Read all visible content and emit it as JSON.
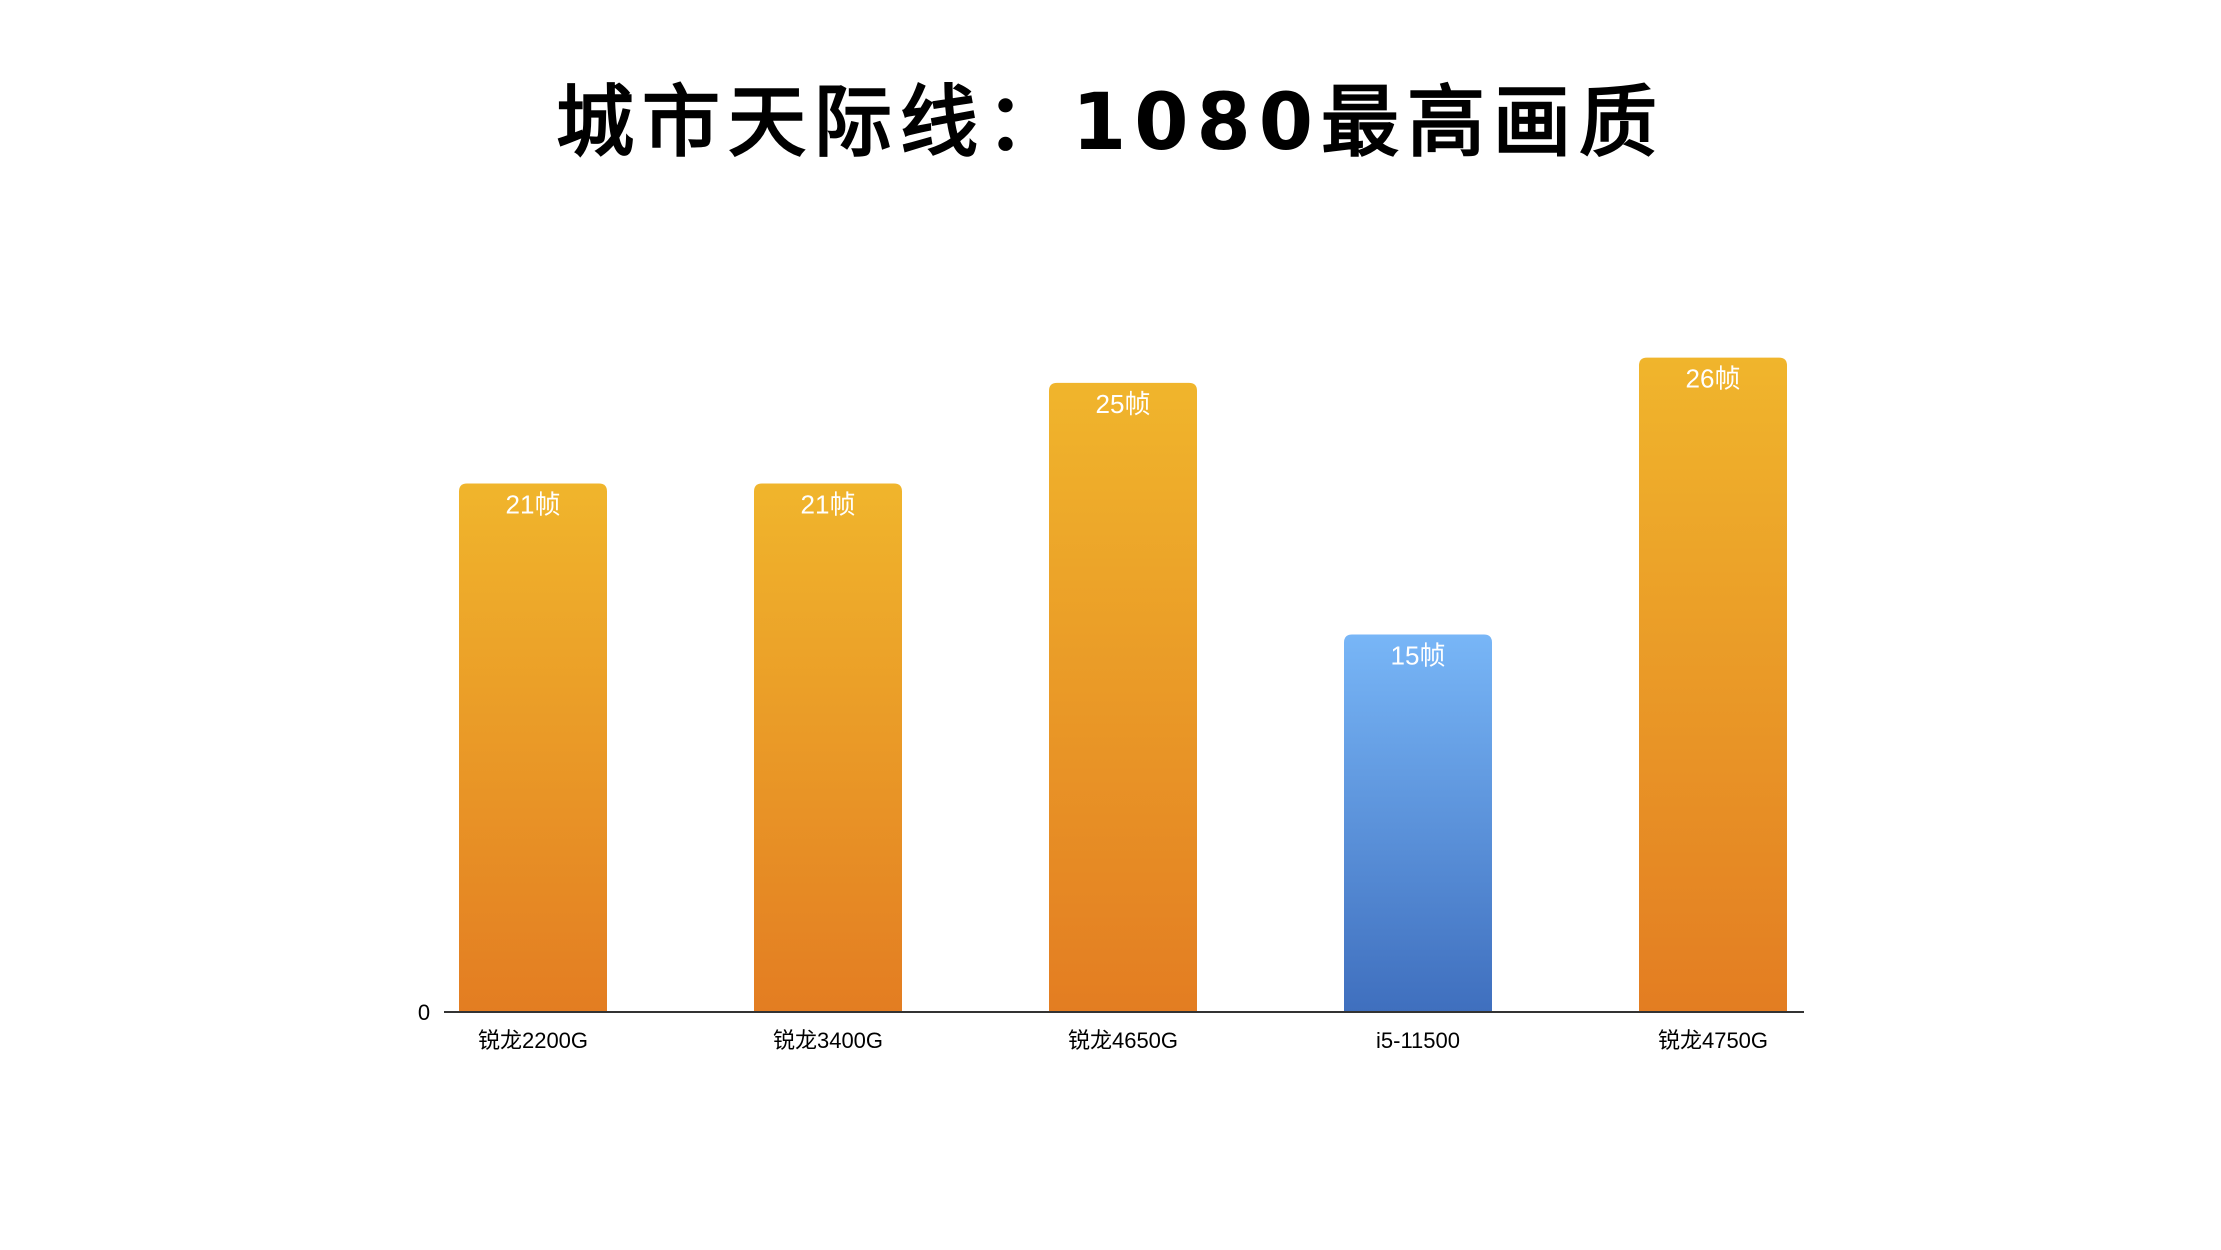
{
  "chart_data": {
    "type": "bar",
    "title": "城市天际线：1080最高画质",
    "categories": [
      "锐龙2200G",
      "锐龙3400G",
      "锐龙4650G",
      "i5-11500",
      "锐龙4750G"
    ],
    "values": [
      21,
      21,
      25,
      15,
      26
    ],
    "data_labels": [
      "21帧",
      "21帧",
      "25帧",
      "15帧",
      "26帧"
    ],
    "y_tick_labels": [
      "0"
    ],
    "xlabel": "",
    "ylabel": "",
    "ylim": [
      0,
      30
    ],
    "grid": false,
    "legend": "none",
    "bar_colors": {
      "amd_top": "#F0B52C",
      "amd_bottom": "#E37D22",
      "intel_top": "#78B6F7",
      "intel_bottom": "#3F6FBE"
    },
    "highlight_index": 3
  }
}
